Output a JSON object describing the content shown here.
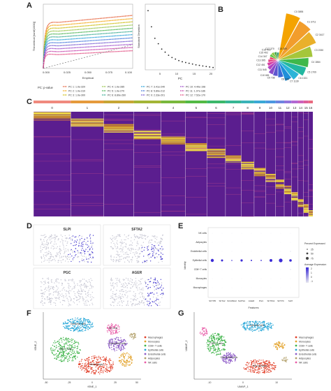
{
  "panels": {
    "A": "A",
    "B": "B",
    "C": "C",
    "D": "D",
    "E": "E",
    "F": "F",
    "G": "G"
  },
  "panelA": {
    "left_ylabel": "Theoretical [runif(1000)]",
    "left_xlabel": "Empirical",
    "left_xticks": [
      "0.000",
      "0.025",
      "0.050",
      "0.075",
      "0.100"
    ],
    "right_ylabel": "Standard Deviation",
    "right_xlabel": "PC",
    "right_xticks": [
      "5",
      "10",
      "15",
      "20"
    ],
    "legend_title": "PC: p-value",
    "legend_items": [
      {
        "text": "PC 1: 1.0e-320",
        "color": "#e4572e"
      },
      {
        "text": "PC 2: 1.0e-310",
        "color": "#f1a208"
      },
      {
        "text": "PC 3: 1.0e-300",
        "color": "#c9b800"
      },
      {
        "text": "PC 4: 1.0e-285",
        "color": "#8fbf3e"
      },
      {
        "text": "PC 5: 1.0e-270",
        "color": "#3fae49"
      },
      {
        "text": "PC 6: 8.80e-260",
        "color": "#2ca58d"
      },
      {
        "text": "PC 7: 3.41e-240",
        "color": "#1e9bd7"
      },
      {
        "text": "PC 8: 5.80e-212",
        "color": "#3a6fd8"
      },
      {
        "text": "PC 9: 2.33e-201",
        "color": "#6f52ce"
      },
      {
        "text": "PC 10: 4.40e-198",
        "color": "#9a45c8"
      },
      {
        "text": "PC 11: 1.07e-186",
        "color": "#c43aa6"
      },
      {
        "text": "PC 12: 7.52e-170",
        "color": "#e0457b"
      }
    ]
  },
  "panelB": {
    "labels": [
      "C0 3895",
      "C1 3711",
      "C2 3417",
      "C3 2330",
      "C4 1864",
      "C5 1709",
      "C6 1321",
      "C7 1139",
      "C8 838",
      "C9 738",
      "C10 681",
      "C11 545",
      "C12 461",
      "C13 395",
      "C14 347",
      "C15 402",
      "C16 403",
      "C17 370",
      "C18 309"
    ]
  },
  "panelC": {
    "clusters": [
      "0",
      "1",
      "2",
      "3",
      "4",
      "5",
      "6",
      "7",
      "8",
      "9",
      "10",
      "11",
      "12",
      "13",
      "14",
      "15",
      "16"
    ]
  },
  "panelD": {
    "genes": [
      "SLPI",
      "SFTA2",
      "PGC",
      "AGER"
    ]
  },
  "panelE": {
    "xlabel": "Features",
    "ylabel": "Identity",
    "rows": [
      "NK cells",
      "Adipocytes",
      "Endothelial cells",
      "Epithelial cells",
      "CD8+ T cells",
      "Monocytes",
      "Macrophages"
    ],
    "features": [
      "SFTPB",
      "SFTA2",
      "SCGB3A2",
      "NAPSA",
      "AGER",
      "PGC",
      "SFTPA1",
      "SFTPC",
      "SLPI"
    ],
    "legend_pct_title": "Percent Expressed",
    "legend_pct_values": [
      "25",
      "50",
      "75"
    ],
    "legend_avg_title": "Average Expression",
    "legend_avg_values": [
      "2",
      "1",
      "0",
      "-1"
    ]
  },
  "panelF": {
    "xlabel": "tSNE_1",
    "ylabel": "tSNE_2",
    "xticks": [
      "-50",
      "-25",
      "0",
      "25",
      "50"
    ],
    "cluster_labels": [
      "Macrophages",
      "Epithelial cells",
      "CD8+ T cells",
      "Endothelial cells",
      "NK cells"
    ],
    "legend": [
      {
        "text": "Macrophages",
        "color": "#e2402a"
      },
      {
        "text": "Monocytes",
        "color": "#e3a32c"
      },
      {
        "text": "CD8+ T cells",
        "color": "#3eb449"
      },
      {
        "text": "Epithelial cells",
        "color": "#27a7d8"
      },
      {
        "text": "Endothelial cells",
        "color": "#8e5bc8"
      },
      {
        "text": "Adipocytes",
        "color": "#b2a06a"
      },
      {
        "text": "NK cells",
        "color": "#e85aa6"
      }
    ]
  },
  "panelG": {
    "xlabel": "UMAP_1",
    "ylabel": "UMAP_2",
    "xticks": [
      "-10",
      "0",
      "10"
    ],
    "cluster_labels": [
      "Epithelial cells",
      "CD8+ T cells",
      "Endothelial cells",
      "Macrophages"
    ],
    "legend": [
      {
        "text": "Macrophages",
        "color": "#e2402a"
      },
      {
        "text": "Monocytes",
        "color": "#e3a32c"
      },
      {
        "text": "CD8+ T cells",
        "color": "#3eb449"
      },
      {
        "text": "Epithelial cells",
        "color": "#27a7d8"
      },
      {
        "text": "Endothelial cells",
        "color": "#8e5bc8"
      },
      {
        "text": "Adipocytes",
        "color": "#b2a06a"
      },
      {
        "text": "NK cells",
        "color": "#e85aa6"
      }
    ]
  }
}
